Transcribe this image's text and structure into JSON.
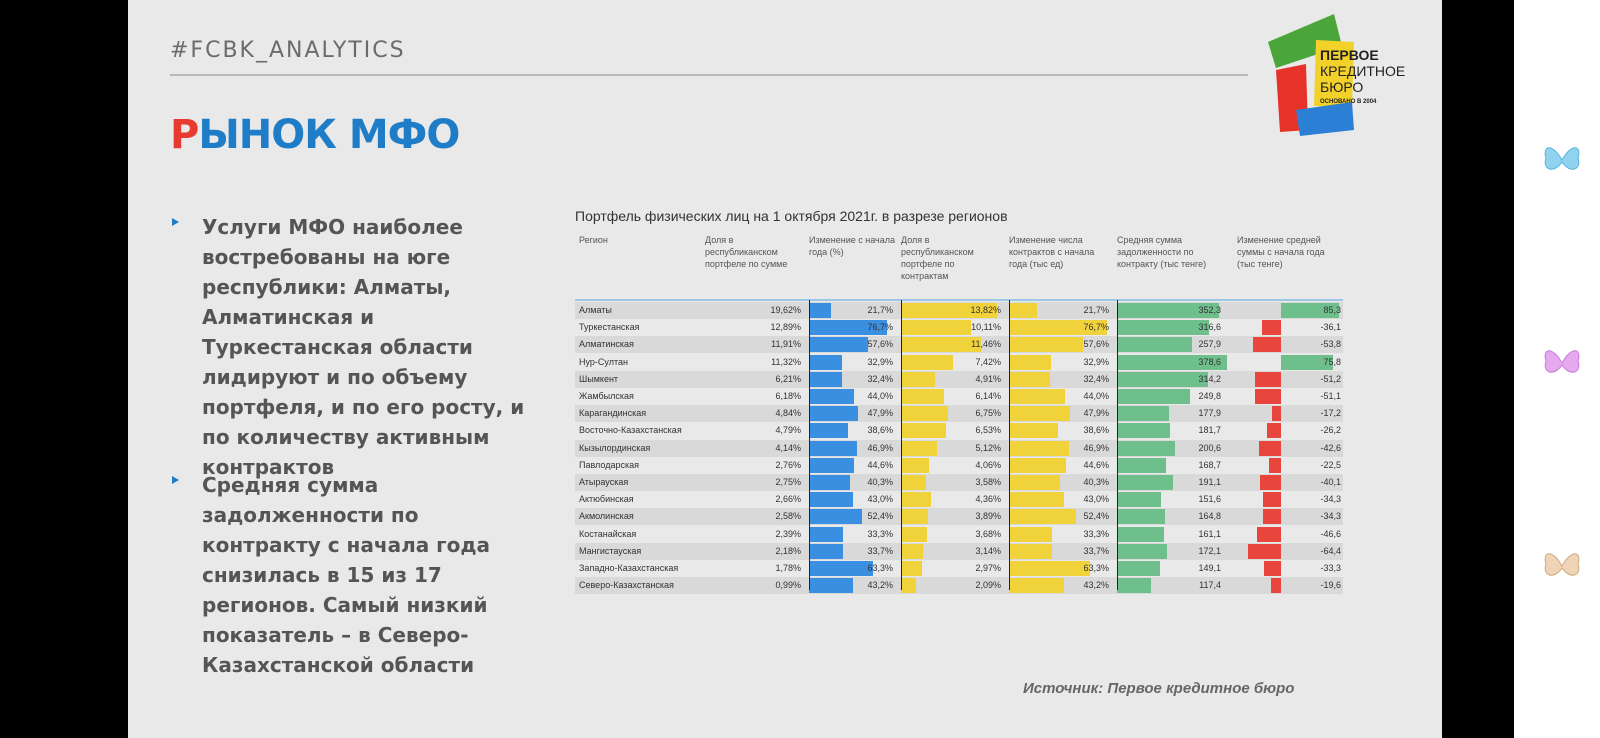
{
  "slide": {
    "hashtag": "#FCBK_ANALYTICS",
    "title_first": "Р",
    "title_rest": "ЫНОК МФО",
    "logo_line1": "ПЕРВОЕ",
    "logo_line2": "КРЕДИТНОЕ",
    "logo_line3": "БЮРО",
    "logo_founded": "ОСНОВАНО В 2004",
    "bullets": [
      "Услуги МФО наиболее востребованы на юге республики: Алматы, Алматинская и Туркестанская области лидируют и по объему портфеля, и по его росту, и по количеству активным контрактов",
      "Средняя сумма задолженности по контракту с начала года снизилась в 15 из 17 регионов. Самый низкий показатель – в Северо-Казахстанской области"
    ],
    "source": "Источник: Первое кредитное бюро"
  },
  "colors": {
    "blue": "#3b8fe0",
    "yellow": "#f0d23a",
    "green": "#6fbf8c",
    "red": "#e8463c",
    "accent_red": "#e63b2e",
    "accent_blue": "#1f7dc8"
  },
  "chart_data": {
    "type": "table",
    "title": "Портфель физических лиц на 1 октября 2021г. в разрезе регионов",
    "columns": [
      "Регион",
      "Доля в республиканском портфеле по сумме",
      "Изменение с начала года (%)",
      "Доля в республиканском портфеле по контрактам",
      "Изменение числа контрактов с начала года (тыс ед)",
      "Средняя сумма задолженности по контракту (тыс тенге)",
      "Изменение средней суммы с начала года (тыс тенге)"
    ],
    "rows": [
      {
        "region": "Алматы",
        "share_sum": "19,62%",
        "chg_sum": "21,7%",
        "share_cnt": "13,82%",
        "chg_cnt": "21,7%",
        "avg": "352,3",
        "chg_avg": "85,3"
      },
      {
        "region": "Туркестанская",
        "share_sum": "12,89%",
        "chg_sum": "76,7%",
        "share_cnt": "10,11%",
        "chg_cnt": "76,7%",
        "avg": "316,6",
        "chg_avg": "-36,1"
      },
      {
        "region": "Алматинская",
        "share_sum": "11,91%",
        "chg_sum": "57,6%",
        "share_cnt": "11,46%",
        "chg_cnt": "57,6%",
        "avg": "257,9",
        "chg_avg": "-53,8"
      },
      {
        "region": "Нур-Султан",
        "share_sum": "11,32%",
        "chg_sum": "32,9%",
        "share_cnt": "7,42%",
        "chg_cnt": "32,9%",
        "avg": "378,6",
        "chg_avg": "75,8"
      },
      {
        "region": "Шымкент",
        "share_sum": "6,21%",
        "chg_sum": "32,4%",
        "share_cnt": "4,91%",
        "chg_cnt": "32,4%",
        "avg": "314,2",
        "chg_avg": "-51,2"
      },
      {
        "region": "Жамбылская",
        "share_sum": "6,18%",
        "chg_sum": "44,0%",
        "share_cnt": "6,14%",
        "chg_cnt": "44,0%",
        "avg": "249,8",
        "chg_avg": "-51,1"
      },
      {
        "region": "Карагандинская",
        "share_sum": "4,84%",
        "chg_sum": "47,9%",
        "share_cnt": "6,75%",
        "chg_cnt": "47,9%",
        "avg": "177,9",
        "chg_avg": "-17,2"
      },
      {
        "region": "Восточно-Казахстанская",
        "share_sum": "4,79%",
        "chg_sum": "38,6%",
        "share_cnt": "6,53%",
        "chg_cnt": "38,6%",
        "avg": "181,7",
        "chg_avg": "-26,2"
      },
      {
        "region": "Кызылординская",
        "share_sum": "4,14%",
        "chg_sum": "46,9%",
        "share_cnt": "5,12%",
        "chg_cnt": "46,9%",
        "avg": "200,6",
        "chg_avg": "-42,6"
      },
      {
        "region": "Павлодарская",
        "share_sum": "2,76%",
        "chg_sum": "44,6%",
        "share_cnt": "4,06%",
        "chg_cnt": "44,6%",
        "avg": "168,7",
        "chg_avg": "-22,5"
      },
      {
        "region": "Атырауская",
        "share_sum": "2,75%",
        "chg_sum": "40,3%",
        "share_cnt": "3,58%",
        "chg_cnt": "40,3%",
        "avg": "191,1",
        "chg_avg": "-40,1"
      },
      {
        "region": "Актюбинская",
        "share_sum": "2,66%",
        "chg_sum": "43,0%",
        "share_cnt": "4,36%",
        "chg_cnt": "43,0%",
        "avg": "151,6",
        "chg_avg": "-34,3"
      },
      {
        "region": "Акмолинская",
        "share_sum": "2,58%",
        "chg_sum": "52,4%",
        "share_cnt": "3,89%",
        "chg_cnt": "52,4%",
        "avg": "164,8",
        "chg_avg": "-34,3"
      },
      {
        "region": "Костанайская",
        "share_sum": "2,39%",
        "chg_sum": "33,3%",
        "share_cnt": "3,68%",
        "chg_cnt": "33,3%",
        "avg": "161,1",
        "chg_avg": "-46,6"
      },
      {
        "region": "Мангистауская",
        "share_sum": "2,18%",
        "chg_sum": "33,7%",
        "share_cnt": "3,14%",
        "chg_cnt": "33,7%",
        "avg": "172,1",
        "chg_avg": "-64,4"
      },
      {
        "region": "Западно-Казахстанская",
        "share_sum": "1,78%",
        "chg_sum": "63,3%",
        "share_cnt": "2,97%",
        "chg_cnt": "63,3%",
        "avg": "149,1",
        "chg_avg": "-33,3"
      },
      {
        "region": "Северо-Казахстанская",
        "share_sum": "0,99%",
        "chg_sum": "43,2%",
        "share_cnt": "2,09%",
        "chg_cnt": "43,2%",
        "avg": "117,4",
        "chg_avg": "-19,6"
      }
    ]
  }
}
